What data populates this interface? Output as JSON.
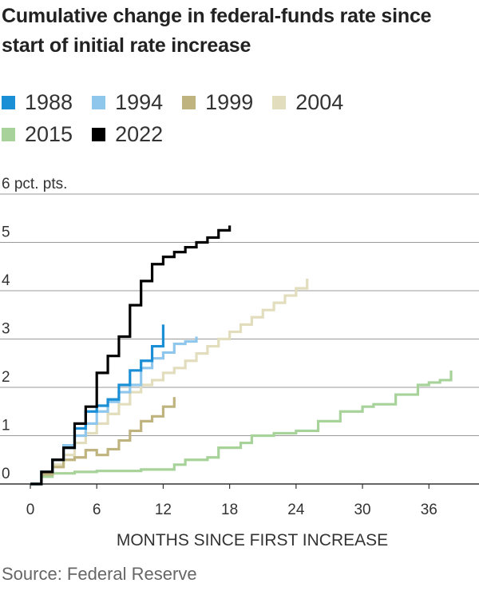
{
  "chart_data": {
    "type": "line",
    "title": "Cumulative change in federal-funds rate since start of initial rate increase",
    "xlabel": "MONTHS SINCE FIRST INCREASE",
    "ylabel": "pct. pts.",
    "xlim": [
      0,
      38
    ],
    "ylim": [
      0,
      6
    ],
    "x_ticks": [
      0,
      6,
      12,
      18,
      24,
      30,
      36
    ],
    "y_ticks": [
      0,
      1,
      2,
      3,
      4,
      5,
      6
    ],
    "y_tick_labels": [
      "0",
      "1",
      "2",
      "3",
      "4",
      "5",
      "6 pct. pts."
    ],
    "grid": "horizontal",
    "step": true,
    "legend_position": "top",
    "series": [
      {
        "name": "1988",
        "color": "#1a8fd6",
        "points": [
          [
            0,
            0
          ],
          [
            1,
            0.25
          ],
          [
            2,
            0.5
          ],
          [
            3,
            0.75
          ],
          [
            4,
            1.15
          ],
          [
            5,
            1.5
          ],
          [
            6,
            1.62
          ],
          [
            7,
            1.75
          ],
          [
            8,
            2.05
          ],
          [
            9,
            2.35
          ],
          [
            10,
            2.55
          ],
          [
            11,
            2.85
          ],
          [
            12,
            3.3
          ]
        ]
      },
      {
        "name": "1994",
        "color": "#8fc6ec",
        "points": [
          [
            0,
            0
          ],
          [
            1,
            0.25
          ],
          [
            2,
            0.5
          ],
          [
            3,
            0.8
          ],
          [
            4,
            1.0
          ],
          [
            5,
            1.25
          ],
          [
            6,
            1.5
          ],
          [
            7,
            1.7
          ],
          [
            8,
            1.9
          ],
          [
            9,
            2.05
          ],
          [
            10,
            2.4
          ],
          [
            11,
            2.6
          ],
          [
            12,
            2.72
          ],
          [
            13,
            2.9
          ],
          [
            14,
            2.95
          ],
          [
            15,
            3.05
          ]
        ]
      },
      {
        "name": "1999",
        "color": "#bfb37f",
        "points": [
          [
            0,
            0
          ],
          [
            1,
            0.2
          ],
          [
            2,
            0.35
          ],
          [
            3,
            0.5
          ],
          [
            4,
            0.55
          ],
          [
            5,
            0.7
          ],
          [
            6,
            0.6
          ],
          [
            7,
            0.72
          ],
          [
            8,
            0.9
          ],
          [
            9,
            1.1
          ],
          [
            10,
            1.3
          ],
          [
            11,
            1.4
          ],
          [
            12,
            1.6
          ],
          [
            13,
            1.8
          ]
        ]
      },
      {
        "name": "2004",
        "color": "#e2ddbc",
        "points": [
          [
            0,
            0
          ],
          [
            1,
            0.25
          ],
          [
            2,
            0.4
          ],
          [
            3,
            0.6
          ],
          [
            4,
            0.85
          ],
          [
            5,
            1.05
          ],
          [
            6,
            1.25
          ],
          [
            7,
            1.45
          ],
          [
            8,
            1.65
          ],
          [
            9,
            1.9
          ],
          [
            10,
            2.05
          ],
          [
            11,
            2.15
          ],
          [
            12,
            2.3
          ],
          [
            13,
            2.4
          ],
          [
            14,
            2.55
          ],
          [
            15,
            2.7
          ],
          [
            16,
            2.85
          ],
          [
            17,
            3.0
          ],
          [
            18,
            3.15
          ],
          [
            19,
            3.3
          ],
          [
            20,
            3.45
          ],
          [
            21,
            3.6
          ],
          [
            22,
            3.75
          ],
          [
            23,
            3.9
          ],
          [
            24,
            4.05
          ],
          [
            25,
            4.25
          ]
        ]
      },
      {
        "name": "2015",
        "color": "#a7d39a",
        "points": [
          [
            0,
            0
          ],
          [
            1,
            0.15
          ],
          [
            2,
            0.22
          ],
          [
            4,
            0.25
          ],
          [
            6,
            0.27
          ],
          [
            8,
            0.27
          ],
          [
            10,
            0.3
          ],
          [
            12,
            0.3
          ],
          [
            13,
            0.4
          ],
          [
            14,
            0.5
          ],
          [
            16,
            0.55
          ],
          [
            17,
            0.75
          ],
          [
            19,
            0.85
          ],
          [
            20,
            1.0
          ],
          [
            22,
            1.05
          ],
          [
            24,
            1.1
          ],
          [
            26,
            1.3
          ],
          [
            28,
            1.5
          ],
          [
            30,
            1.6
          ],
          [
            31,
            1.65
          ],
          [
            33,
            1.85
          ],
          [
            34,
            1.85
          ],
          [
            35,
            2.05
          ],
          [
            36,
            2.1
          ],
          [
            37,
            2.15
          ],
          [
            38,
            2.35
          ]
        ]
      },
      {
        "name": "2022",
        "color": "#000000",
        "points": [
          [
            0,
            0
          ],
          [
            1,
            0.25
          ],
          [
            2,
            0.5
          ],
          [
            3,
            0.75
          ],
          [
            4,
            1.25
          ],
          [
            5,
            1.6
          ],
          [
            6,
            2.3
          ],
          [
            7,
            2.65
          ],
          [
            8,
            3.05
          ],
          [
            9,
            3.7
          ],
          [
            10,
            4.2
          ],
          [
            11,
            4.55
          ],
          [
            12,
            4.7
          ],
          [
            13,
            4.8
          ],
          [
            14,
            4.9
          ],
          [
            15,
            5.0
          ],
          [
            16,
            5.1
          ],
          [
            17,
            5.25
          ],
          [
            18,
            5.35
          ]
        ]
      }
    ]
  }
}
